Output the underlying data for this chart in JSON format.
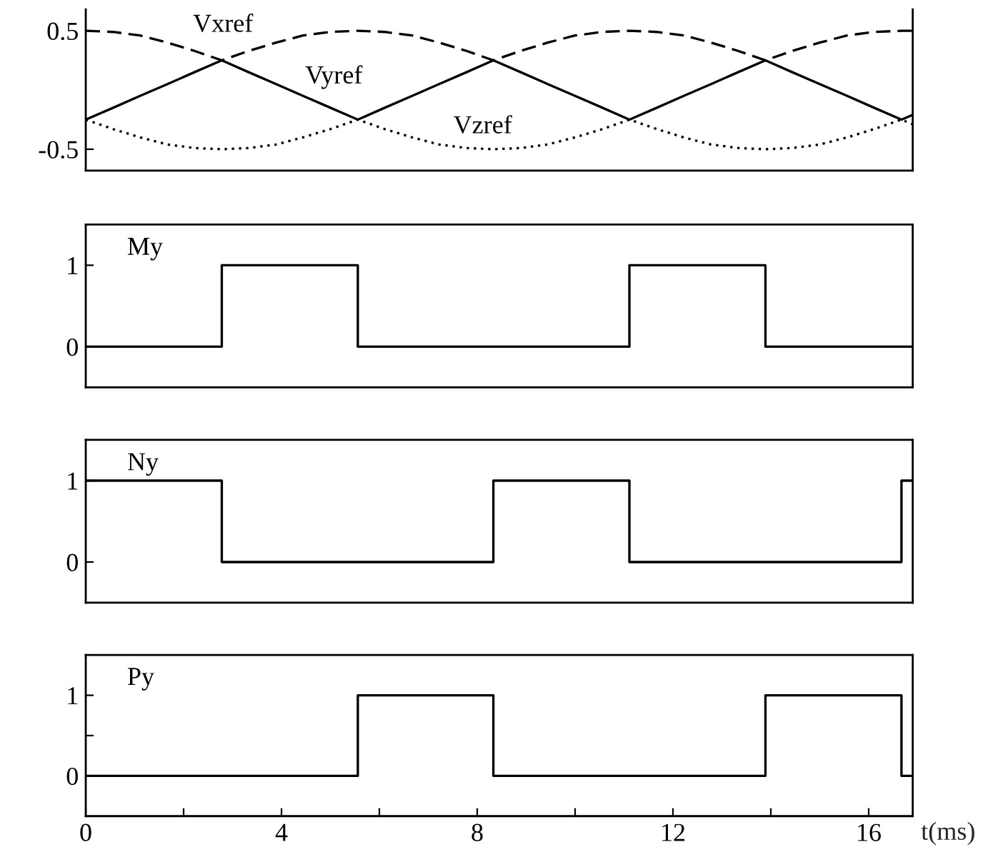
{
  "chart_data": [
    {
      "type": "line",
      "x": [
        0,
        0.56,
        1.11,
        1.67,
        2.22,
        2.78,
        3.33,
        3.89,
        4.44,
        5,
        5.56,
        6.11,
        6.67,
        7.22,
        7.78,
        8.33,
        8.89,
        9.44,
        10,
        10.56,
        11.11,
        11.67,
        12.22,
        12.78,
        13.33,
        13.89,
        14.44,
        15,
        15.56,
        16.11,
        16.67,
        16.9
      ],
      "series": [
        {
          "name": "Vxref",
          "color": "#000000",
          "line_style": "dashed",
          "values": [
            0.5,
            0.49,
            0.46,
            0.4,
            0.33,
            0.25,
            0.33,
            0.4,
            0.46,
            0.49,
            0.5,
            0.49,
            0.46,
            0.4,
            0.33,
            0.25,
            0.33,
            0.4,
            0.46,
            0.49,
            0.5,
            0.49,
            0.46,
            0.4,
            0.33,
            0.25,
            0.33,
            0.4,
            0.46,
            0.49,
            0.5,
            0.5
          ]
        },
        {
          "name": "Vyref",
          "color": "#000000",
          "line_style": "solid",
          "values": [
            -0.25,
            -0.15,
            -0.05,
            0.05,
            0.15,
            0.25,
            0.15,
            0.05,
            -0.05,
            -0.15,
            -0.25,
            -0.15,
            -0.05,
            0.05,
            0.15,
            0.25,
            0.15,
            0.05,
            -0.05,
            -0.15,
            -0.25,
            -0.15,
            -0.05,
            0.05,
            0.15,
            0.25,
            0.15,
            0.05,
            -0.05,
            -0.15,
            -0.25,
            -0.21
          ]
        },
        {
          "name": "Vzref",
          "color": "#000000",
          "line_style": "dotted",
          "values": [
            -0.25,
            -0.33,
            -0.4,
            -0.46,
            -0.49,
            -0.5,
            -0.49,
            -0.46,
            -0.4,
            -0.33,
            -0.25,
            -0.33,
            -0.4,
            -0.46,
            -0.49,
            -0.5,
            -0.49,
            -0.46,
            -0.4,
            -0.33,
            -0.25,
            -0.33,
            -0.4,
            -0.46,
            -0.49,
            -0.5,
            -0.49,
            -0.46,
            -0.4,
            -0.33,
            -0.25,
            -0.29
          ]
        }
      ],
      "xlim": [
        0,
        16.9
      ],
      "ylim": [
        -0.68,
        0.68
      ],
      "yticks": [
        0.5,
        -0.5
      ],
      "tick_labels": "y",
      "grid": false,
      "legend": false
    },
    {
      "type": "step",
      "x": [
        0,
        2.78,
        5.56,
        11.11,
        13.89,
        16.9
      ],
      "series": [
        {
          "name": "My",
          "color": "#000000",
          "values": [
            0,
            1,
            0,
            1,
            0,
            0
          ]
        }
      ],
      "xlim": [
        0,
        16.9
      ],
      "ylim": [
        -0.5,
        1.5
      ],
      "yticks": [
        0,
        1
      ],
      "tick_labels": "y",
      "grid": false,
      "legend": false
    },
    {
      "type": "step",
      "x": [
        0,
        2.78,
        8.33,
        11.11,
        16.67,
        16.9
      ],
      "series": [
        {
          "name": "Ny",
          "color": "#000000",
          "values": [
            1,
            0,
            1,
            0,
            1,
            1
          ]
        }
      ],
      "xlim": [
        0,
        16.9
      ],
      "ylim": [
        -0.5,
        1.5
      ],
      "yticks": [
        0,
        1
      ],
      "tick_labels": "y",
      "grid": false,
      "legend": false
    },
    {
      "type": "step",
      "x": [
        0,
        5.56,
        8.33,
        13.89,
        16.67,
        16.9
      ],
      "series": [
        {
          "name": "Py",
          "color": "#000000",
          "values": [
            0,
            1,
            0,
            1,
            0,
            0
          ]
        }
      ],
      "xlim": [
        0,
        16.9
      ],
      "ylim": [
        -0.5,
        1.5
      ],
      "yticks": [
        0,
        {
          "value": 0.5,
          "label": null
        },
        1
      ],
      "xticks": [
        0,
        {
          "value": 2,
          "label": null
        },
        4,
        {
          "value": 6,
          "label": null
        },
        8,
        {
          "value": 10,
          "label": null
        },
        12,
        {
          "value": 14,
          "label": null
        },
        16
      ],
      "xlabel": "t(ms)",
      "grid": false,
      "legend": false
    }
  ]
}
